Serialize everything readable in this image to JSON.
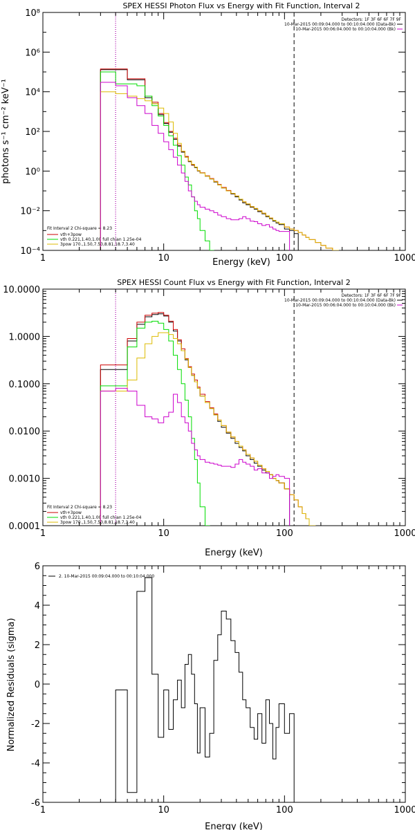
{
  "colors": {
    "total": "#000000",
    "fit_total": "#cc0000",
    "thermal": "#00dd00",
    "powerlaw": "#ddbb00",
    "bk": "#cc00cc",
    "axis": "#000000"
  },
  "chart_data": [
    {
      "type": "line",
      "title": "SPEX HESSI Photon Flux vs Energy with Fit Function, Interval 2",
      "xlabel": "Energy (keV)",
      "ylabel": "photons s⁻¹ cm⁻² keV⁻¹",
      "xscale": "log",
      "yscale": "log",
      "xlim": [
        1,
        1000
      ],
      "ylim": [
        0.0001,
        100000000
      ],
      "xticks": [
        "1",
        "10",
        "100",
        "1000"
      ],
      "yticks": [
        "10⁸",
        "10⁶",
        "10⁴",
        "10²",
        "10⁰",
        "10⁻²",
        "10⁻⁴"
      ],
      "header": [
        "Detectors: 1F 3F 6F 6F 7F 9F",
        "10-Mar-2015 00:09:04.000 to 00:10:04.000 (Data-Bk)",
        "10-Mar-2015 00:06:04.000 to 00:10:04.000 (Bk)"
      ],
      "legend": [
        "Fit Interval 2   Chi-square = 8.23",
        "vth+3pow",
        "vth 0.221,1.40,1.00  full chian 1.25e-04",
        "3pow 170.,1.50,7.50,8.81,18.7,3.40"
      ],
      "x_edges": [
        3,
        4,
        5,
        6,
        7,
        8,
        9,
        10,
        11,
        12,
        13,
        14,
        15,
        16,
        17,
        18,
        19,
        20,
        22,
        24,
        26,
        28,
        30,
        33,
        36,
        39,
        42,
        45,
        48,
        52,
        56,
        60,
        65,
        70,
        75,
        80,
        85,
        90,
        100,
        110,
        120,
        130,
        140,
        150,
        160,
        180,
        200,
        220,
        250,
        280,
        300
      ],
      "series": [
        {
          "name": "Data-Bk",
          "key": "total",
          "values": [
            130000,
            130000,
            40000,
            40000,
            5000,
            2500,
            700,
            250,
            90,
            40,
            18,
            9,
            5,
            3,
            2,
            1.5,
            1.0,
            0.8,
            0.55,
            0.4,
            0.28,
            0.2,
            0.14,
            0.1,
            0.07,
            0.05,
            0.035,
            0.025,
            0.02,
            0.015,
            0.012,
            0.009,
            0.007,
            0.005,
            0.004,
            0.003,
            0.0024,
            0.002,
            0.0012,
            0.001,
            0.0007
          ]
        },
        {
          "name": "vth+3pow",
          "key": "fit_total",
          "values": [
            140000,
            140000,
            45000,
            45000,
            6000,
            3000,
            800,
            280,
            100,
            45,
            20,
            10,
            5.5,
            3.2,
            2.1,
            1.6,
            1.05,
            0.82,
            0.58,
            0.42,
            0.3,
            0.21,
            0.15,
            0.105,
            0.075,
            0.055,
            0.038,
            0.028,
            0.022,
            0.016,
            0.013,
            0.01,
            0.0075,
            0.0055,
            0.0043,
            0.0033,
            0.0027,
            0.0022,
            0.0015,
            0.0012,
            0.001,
            0.0008,
            0.0006,
            0.00045,
            0.00035,
            0.00025,
            0.00018,
            0.00013,
            0.0001
          ]
        },
        {
          "name": "vth",
          "key": "thermal",
          "values": [
            100000,
            25000,
            25000,
            20000,
            6000,
            2000,
            600,
            200,
            60,
            20,
            6,
            2,
            0.5,
            0.2,
            0.05,
            0.01,
            0.004,
            0.001,
            0.0003,
            0.0001
          ]
        },
        {
          "name": "3pow",
          "key": "powerlaw",
          "values": [
            10000,
            8000,
            6000,
            4500,
            3500,
            2500,
            1500,
            800,
            300,
            80,
            25,
            10,
            5,
            3.2,
            2.2,
            1.6,
            1.05,
            0.8,
            0.56,
            0.4,
            0.29,
            0.2,
            0.14,
            0.1,
            0.075,
            0.055,
            0.038,
            0.028,
            0.022,
            0.016,
            0.013,
            0.01,
            0.0075,
            0.0055,
            0.0043,
            0.0033,
            0.0027,
            0.0022,
            0.0015,
            0.0012,
            0.001,
            0.0008,
            0.0006,
            0.00045,
            0.00035,
            0.00025,
            0.00018,
            0.00013,
            0.0001
          ]
        },
        {
          "name": "Bk",
          "key": "bk",
          "values": [
            30000,
            20000,
            5000,
            2000,
            800,
            200,
            80,
            30,
            12,
            5,
            2,
            0.8,
            0.3,
            0.1,
            0.05,
            0.03,
            0.02,
            0.015,
            0.012,
            0.01,
            0.008,
            0.006,
            0.005,
            0.004,
            0.0035,
            0.0035,
            0.004,
            0.005,
            0.004,
            0.003,
            0.0028,
            0.0022,
            0.0018,
            0.002,
            0.0015,
            0.0012,
            0.001,
            0.0009,
            0.0009
          ]
        }
      ]
    },
    {
      "type": "line",
      "title": "SPEX HESSI Count Flux vs Energy with Fit Function, Interval 2",
      "xlabel": "Energy (keV)",
      "ylabel": "",
      "xscale": "log",
      "yscale": "log",
      "xlim": [
        1,
        1000
      ],
      "ylim": [
        0.0001,
        10
      ],
      "xticks": [
        "1",
        "10",
        "100",
        "1000"
      ],
      "yticks": [
        "10.0000",
        "1.0000",
        "0.1000",
        "0.0100",
        "0.0010",
        "0.0001"
      ],
      "header": [
        "Detectors: 1F 3F 6F 6F 7F 9F",
        "10-Mar-2015 00:09:04.000 to 00:10:04.000 (Data-Bk)",
        "10-Mar-2015 00:06:04.000 to 00:10:04.000 (Bk)"
      ],
      "legend": [
        "Fit Interval 2   Chi-square = 8.23",
        "vth+3pow",
        "vth 0.221,1.40,1.00  full chian 1.25e-04",
        "3pow 170.,1.50,7.50,8.81,18.7,3.40"
      ],
      "x_edges": [
        3,
        4,
        5,
        6,
        7,
        8,
        9,
        10,
        11,
        12,
        13,
        14,
        15,
        16,
        17,
        18,
        19,
        20,
        22,
        24,
        26,
        28,
        30,
        33,
        36,
        39,
        42,
        45,
        48,
        52,
        56,
        60,
        65,
        70,
        75,
        80,
        85,
        90,
        100,
        110,
        120,
        130,
        140,
        150,
        160,
        180,
        200,
        220
      ],
      "series": [
        {
          "name": "Data-Bk",
          "key": "total",
          "values": [
            0.2,
            0.2,
            0.8,
            1.8,
            2.6,
            2.9,
            3.0,
            2.7,
            2.0,
            1.3,
            0.8,
            0.5,
            0.32,
            0.22,
            0.15,
            0.11,
            0.08,
            0.055,
            0.04,
            0.03,
            0.022,
            0.016,
            0.012,
            0.009,
            0.007,
            0.0055,
            0.0045,
            0.0038,
            0.003,
            0.0025,
            0.0021,
            0.0018,
            0.0015,
            0.0013,
            0.0012,
            0.001,
            0.0009,
            0.0008,
            0.0006
          ]
        },
        {
          "name": "vth+3pow",
          "key": "fit_total",
          "values": [
            0.25,
            0.25,
            0.9,
            2.0,
            2.8,
            3.1,
            3.2,
            2.8,
            2.1,
            1.4,
            0.85,
            0.55,
            0.34,
            0.23,
            0.16,
            0.12,
            0.085,
            0.06,
            0.042,
            0.031,
            0.023,
            0.017,
            0.013,
            0.0095,
            0.0075,
            0.006,
            0.0048,
            0.004,
            0.0032,
            0.0027,
            0.0023,
            0.0019,
            0.0016,
            0.0014,
            0.0012,
            0.001,
            0.0009,
            0.0008,
            0.0006,
            0.00045,
            0.00035,
            0.00025,
            0.00018,
            0.00014,
            0.0001
          ]
        },
        {
          "name": "vth",
          "key": "thermal",
          "values": [
            0.09,
            0.09,
            0.6,
            1.5,
            2.0,
            2.1,
            1.9,
            1.4,
            0.8,
            0.4,
            0.2,
            0.1,
            0.045,
            0.02,
            0.007,
            0.0025,
            0.0008,
            0.00025,
            0.0001
          ]
        },
        {
          "name": "3pow",
          "key": "powerlaw",
          "values": [
            0.07,
            0.07,
            0.12,
            0.35,
            0.7,
            1.0,
            1.2,
            1.2,
            1.1,
            0.9,
            0.7,
            0.5,
            0.33,
            0.22,
            0.15,
            0.11,
            0.08,
            0.055,
            0.04,
            0.03,
            0.022,
            0.017,
            0.013,
            0.0095,
            0.0075,
            0.006,
            0.0048,
            0.004,
            0.0032,
            0.0027,
            0.0023,
            0.0019,
            0.0016,
            0.0014,
            0.0012,
            0.001,
            0.0009,
            0.0008,
            0.0006,
            0.00045,
            0.00035,
            0.00025,
            0.00018,
            0.00014,
            0.0001
          ]
        },
        {
          "name": "Bk",
          "key": "bk",
          "values": [
            0.07,
            0.08,
            0.07,
            0.035,
            0.02,
            0.018,
            0.015,
            0.02,
            0.025,
            0.06,
            0.04,
            0.02,
            0.015,
            0.01,
            0.0055,
            0.004,
            0.003,
            0.0025,
            0.0022,
            0.0021,
            0.002,
            0.0019,
            0.0018,
            0.0018,
            0.0017,
            0.002,
            0.0025,
            0.0022,
            0.002,
            0.0018,
            0.0015,
            0.0016,
            0.0013,
            0.0013,
            0.001,
            0.0011,
            0.0012,
            0.0011,
            0.001
          ]
        }
      ]
    },
    {
      "type": "line",
      "title": "",
      "xlabel": "Energy (keV)",
      "ylabel": "Normalized Residuals (sigma)",
      "xscale": "log",
      "yscale": "linear",
      "xlim": [
        1,
        1000
      ],
      "ylim": [
        -6,
        6
      ],
      "xticks": [
        "1",
        "10",
        "100",
        "1000"
      ],
      "yticks": [
        "6",
        "4",
        "2",
        "0",
        "-2",
        "-4",
        "-6"
      ],
      "legend": [
        "2. 10-Mar-2015 00:09:04.000 to 00:10:04.000"
      ],
      "x_edges": [
        4,
        5,
        6,
        7,
        8,
        9,
        10,
        11,
        12,
        13,
        14,
        15,
        16,
        17,
        18,
        19,
        20,
        22,
        24,
        26,
        28,
        30,
        33,
        36,
        39,
        42,
        45,
        48,
        52,
        56,
        60,
        65,
        70,
        75,
        80,
        85,
        90,
        100,
        110,
        120
      ],
      "series": [
        {
          "name": "residuals",
          "key": "total",
          "values": [
            -0.3,
            -5.5,
            4.7,
            5.4,
            0.5,
            -2.7,
            -0.3,
            -2.3,
            -0.8,
            0.2,
            -1.2,
            1.0,
            1.5,
            0.5,
            -1.0,
            -3.5,
            -1.2,
            -3.7,
            -2.5,
            1.2,
            2.5,
            3.7,
            3.3,
            2.2,
            1.6,
            0.6,
            -0.8,
            -1.2,
            -2.2,
            -2.8,
            -1.5,
            -3.0,
            -0.8,
            -2.0,
            -3.8,
            -2.2,
            -1.0,
            -2.5,
            -1.5
          ]
        }
      ]
    }
  ]
}
